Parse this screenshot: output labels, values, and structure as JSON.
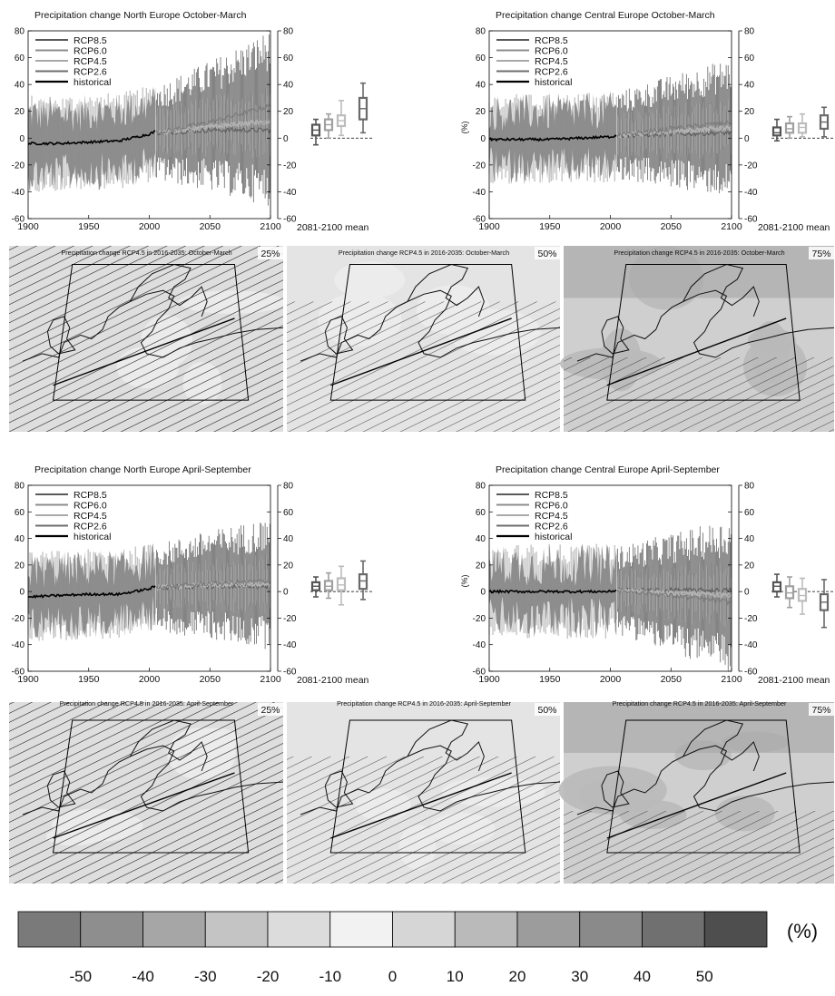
{
  "series_names": [
    "RCP8.5",
    "RCP6.0",
    "RCP4.5",
    "RCP2.6",
    "historical"
  ],
  "series_colors": {
    "RCP8.5": "#5a5a5a",
    "RCP6.0": "#8c8c8c",
    "RCP4.5": "#a9a9a9",
    "RCP2.6": "#6e6e6e",
    "historical": "#000000"
  },
  "time_axis": {
    "ticks": [
      "1900",
      "1950",
      "2000",
      "2050",
      "2100"
    ],
    "range": [
      1900,
      2100
    ]
  },
  "y_axis": {
    "ticks": [
      -60,
      -40,
      -20,
      0,
      20,
      40,
      60,
      80
    ],
    "range": [
      -60,
      80
    ]
  },
  "mean_label": "2081-2100 mean",
  "ylabel_central": "(%)",
  "chart_data": [
    {
      "type": "line",
      "title": "Precipitation change North Europe October-March",
      "ylabel": "",
      "xlabel": "",
      "x_range": [
        1900,
        2100
      ],
      "ylim": [
        -60,
        80
      ],
      "legend_position": "top-left",
      "series": [
        {
          "name": "historical",
          "x": [
            1900,
            1925,
            1950,
            1975,
            2000,
            2005
          ],
          "y": [
            -4,
            -4,
            -3,
            -2,
            3,
            5
          ]
        },
        {
          "name": "RCP2.6",
          "x": [
            2006,
            2050,
            2100
          ],
          "y": [
            4,
            6,
            6
          ]
        },
        {
          "name": "RCP4.5",
          "x": [
            2006,
            2050,
            2100
          ],
          "y": [
            4,
            9,
            12
          ]
        },
        {
          "name": "RCP6.0",
          "x": [
            2006,
            2050,
            2100
          ],
          "y": [
            4,
            8,
            13
          ]
        },
        {
          "name": "RCP8.5",
          "x": [
            2006,
            2050,
            2100
          ],
          "y": [
            4,
            12,
            24
          ]
        }
      ],
      "box_2081_2100": [
        {
          "name": "RCP2.6",
          "min": -5,
          "q1": 2,
          "median": 6,
          "q3": 10,
          "max": 14
        },
        {
          "name": "RCP6.0",
          "min": 0,
          "q1": 6,
          "median": 10,
          "q3": 14,
          "max": 18
        },
        {
          "name": "RCP4.5",
          "min": 2,
          "q1": 9,
          "median": 13,
          "q3": 17,
          "max": 28
        },
        {
          "name": "RCP8.5",
          "min": 4,
          "q1": 14,
          "median": 22,
          "q3": 30,
          "max": 41
        }
      ]
    },
    {
      "type": "line",
      "title": "Precipitation change Central Europe October-March",
      "ylabel": "(%)",
      "xlabel": "",
      "x_range": [
        1900,
        2100
      ],
      "ylim": [
        -60,
        80
      ],
      "legend_position": "top-left",
      "series": [
        {
          "name": "historical",
          "x": [
            1900,
            1925,
            1950,
            1975,
            2000,
            2005
          ],
          "y": [
            -1,
            -1,
            -1,
            0,
            1,
            2
          ]
        },
        {
          "name": "RCP2.6",
          "x": [
            2006,
            2050,
            2100
          ],
          "y": [
            2,
            3,
            4
          ]
        },
        {
          "name": "RCP4.5",
          "x": [
            2006,
            2050,
            2100
          ],
          "y": [
            2,
            5,
            7
          ]
        },
        {
          "name": "RCP6.0",
          "x": [
            2006,
            2050,
            2100
          ],
          "y": [
            2,
            5,
            8
          ]
        },
        {
          "name": "RCP8.5",
          "x": [
            2006,
            2050,
            2100
          ],
          "y": [
            2,
            7,
            12
          ]
        }
      ],
      "box_2081_2100": [
        {
          "name": "RCP2.6",
          "min": -2,
          "q1": 2,
          "median": 4,
          "q3": 8,
          "max": 14
        },
        {
          "name": "RCP6.0",
          "min": 0,
          "q1": 4,
          "median": 7,
          "q3": 11,
          "max": 16
        },
        {
          "name": "RCP4.5",
          "min": 1,
          "q1": 4,
          "median": 8,
          "q3": 11,
          "max": 18
        },
        {
          "name": "RCP8.5",
          "min": 1,
          "q1": 7,
          "median": 12,
          "q3": 17,
          "max": 23
        }
      ]
    },
    {
      "type": "line",
      "title": "Precipitation change North Europe April-September",
      "ylabel": "",
      "xlabel": "",
      "x_range": [
        1900,
        2100
      ],
      "ylim": [
        -60,
        80
      ],
      "legend_position": "top-left",
      "series": [
        {
          "name": "historical",
          "x": [
            1900,
            1925,
            1950,
            1975,
            2000,
            2005
          ],
          "y": [
            -4,
            -3,
            -2,
            -2,
            2,
            4
          ]
        },
        {
          "name": "RCP2.6",
          "x": [
            2006,
            2050,
            2100
          ],
          "y": [
            3,
            4,
            4
          ]
        },
        {
          "name": "RCP4.5",
          "x": [
            2006,
            2050,
            2100
          ],
          "y": [
            3,
            5,
            5
          ]
        },
        {
          "name": "RCP6.0",
          "x": [
            2006,
            2050,
            2100
          ],
          "y": [
            3,
            5,
            6
          ]
        },
        {
          "name": "RCP8.5",
          "x": [
            2006,
            2050,
            2100
          ],
          "y": [
            3,
            6,
            8
          ]
        }
      ],
      "box_2081_2100": [
        {
          "name": "RCP2.6",
          "min": -4,
          "q1": 1,
          "median": 4,
          "q3": 7,
          "max": 11
        },
        {
          "name": "RCP6.0",
          "min": -5,
          "q1": 1,
          "median": 4,
          "q3": 8,
          "max": 14
        },
        {
          "name": "RCP4.5",
          "min": -10,
          "q1": 1,
          "median": 5,
          "q3": 10,
          "max": 19
        },
        {
          "name": "RCP8.5",
          "min": -6,
          "q1": 2,
          "median": 8,
          "q3": 13,
          "max": 23
        }
      ]
    },
    {
      "type": "line",
      "title": "Precipitation change Central Europe April-September",
      "ylabel": "(%)",
      "xlabel": "",
      "x_range": [
        1900,
        2100
      ],
      "ylim": [
        -60,
        80
      ],
      "legend_position": "top-left",
      "series": [
        {
          "name": "historical",
          "x": [
            1900,
            1925,
            1950,
            1975,
            2000,
            2005
          ],
          "y": [
            0,
            0,
            0,
            0,
            0,
            1
          ]
        },
        {
          "name": "RCP2.6",
          "x": [
            2006,
            2050,
            2100
          ],
          "y": [
            1,
            1,
            1
          ]
        },
        {
          "name": "RCP4.5",
          "x": [
            2006,
            2050,
            2100
          ],
          "y": [
            1,
            -1,
            -3
          ]
        },
        {
          "name": "RCP6.0",
          "x": [
            2006,
            2050,
            2100
          ],
          "y": [
            1,
            -1,
            -2
          ]
        },
        {
          "name": "RCP8.5",
          "x": [
            2006,
            2050,
            2100
          ],
          "y": [
            1,
            -3,
            -8
          ]
        }
      ],
      "box_2081_2100": [
        {
          "name": "RCP2.6",
          "min": -4,
          "q1": 0,
          "median": 4,
          "q3": 7,
          "max": 13
        },
        {
          "name": "RCP6.0",
          "min": -12,
          "q1": -5,
          "median": -1,
          "q3": 4,
          "max": 11
        },
        {
          "name": "RCP4.5",
          "min": -17,
          "q1": -7,
          "median": -3,
          "q3": 2,
          "max": 10
        },
        {
          "name": "RCP8.5",
          "min": -27,
          "q1": -14,
          "median": -8,
          "q3": -2,
          "max": 9
        }
      ]
    }
  ],
  "maps": {
    "titles_winter": [
      "Precipitation change RCP4.5 in 2016-2035: October-March",
      "Precipitation change RCP4.5 in 2016-2035: October-March",
      "Precipitation change RCP4.5 in 2016-2035: October-March"
    ],
    "titles_summer": [
      "Precipitation change RCP4.5 in 2016-2035: April-September",
      "Precipitation change RCP4.5 in 2016-2035: April-September",
      "Precipitation change RCP4.5 in 2016-2035: April-September"
    ],
    "percentiles": [
      "25%",
      "50%",
      "75%"
    ]
  },
  "colorbar": {
    "unit": "(%)",
    "labels": [
      "-50",
      "-40",
      "-30",
      "-20",
      "-10",
      "0",
      "10",
      "20",
      "30",
      "40",
      "50"
    ],
    "colors": [
      "#7a7a7a",
      "#8e8e8e",
      "#a6a6a6",
      "#c4c4c4",
      "#dcdcdc",
      "#f2f2f2",
      "#d6d6d6",
      "#bababa",
      "#9c9c9c",
      "#8a8a8a",
      "#707070",
      "#4e4e4e"
    ]
  }
}
